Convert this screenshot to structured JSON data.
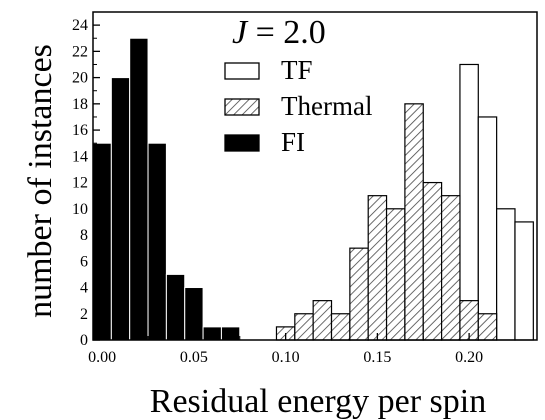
{
  "chart_data": {
    "type": "bar",
    "annotation": {
      "italic": "J",
      "rest": " = 2.0"
    },
    "xlabel": "Residual energy per spin",
    "ylabel": "number of instances",
    "xlim": [
      -0.005,
      0.237
    ],
    "ylim": [
      0,
      25
    ],
    "bin_width": 0.01,
    "x_ticks": [
      0.0,
      0.05,
      0.1,
      0.15,
      0.2
    ],
    "x_tick_labels": [
      "0.00",
      "0.05",
      "0.10",
      "0.15",
      "0.20"
    ],
    "y_ticks": [
      0,
      2,
      4,
      6,
      8,
      10,
      12,
      14,
      16,
      18,
      20,
      22,
      24
    ],
    "y_tick_labels": [
      "0",
      "2",
      "4",
      "6",
      "8",
      "10",
      "12",
      "14",
      "16",
      "18",
      "20",
      "22",
      "24"
    ],
    "legend_position": "top-center",
    "series": [
      {
        "name": "TF",
        "style": "open",
        "color": "#ffffff",
        "bins": [
          0.13,
          0.14,
          0.15,
          0.16,
          0.17,
          0.18,
          0.19,
          0.2,
          0.21,
          0.22,
          0.23
        ],
        "values": [
          1,
          1,
          1,
          2,
          3,
          1,
          6,
          21,
          17,
          10,
          9
        ]
      },
      {
        "name": "Thermal",
        "style": "hatched",
        "color": "#444444",
        "bins": [
          0.1,
          0.11,
          0.12,
          0.13,
          0.14,
          0.15,
          0.16,
          0.17,
          0.18,
          0.19,
          0.2,
          0.21
        ],
        "values": [
          1,
          2,
          3,
          2,
          7,
          11,
          10,
          18,
          12,
          11,
          3,
          2
        ]
      },
      {
        "name": "FI",
        "style": "filled",
        "color": "#000000",
        "bins": [
          0.0,
          0.01,
          0.02,
          0.03,
          0.04,
          0.05,
          0.06,
          0.07
        ],
        "values": [
          15,
          20,
          23,
          15,
          5,
          4,
          1,
          1
        ]
      }
    ]
  }
}
